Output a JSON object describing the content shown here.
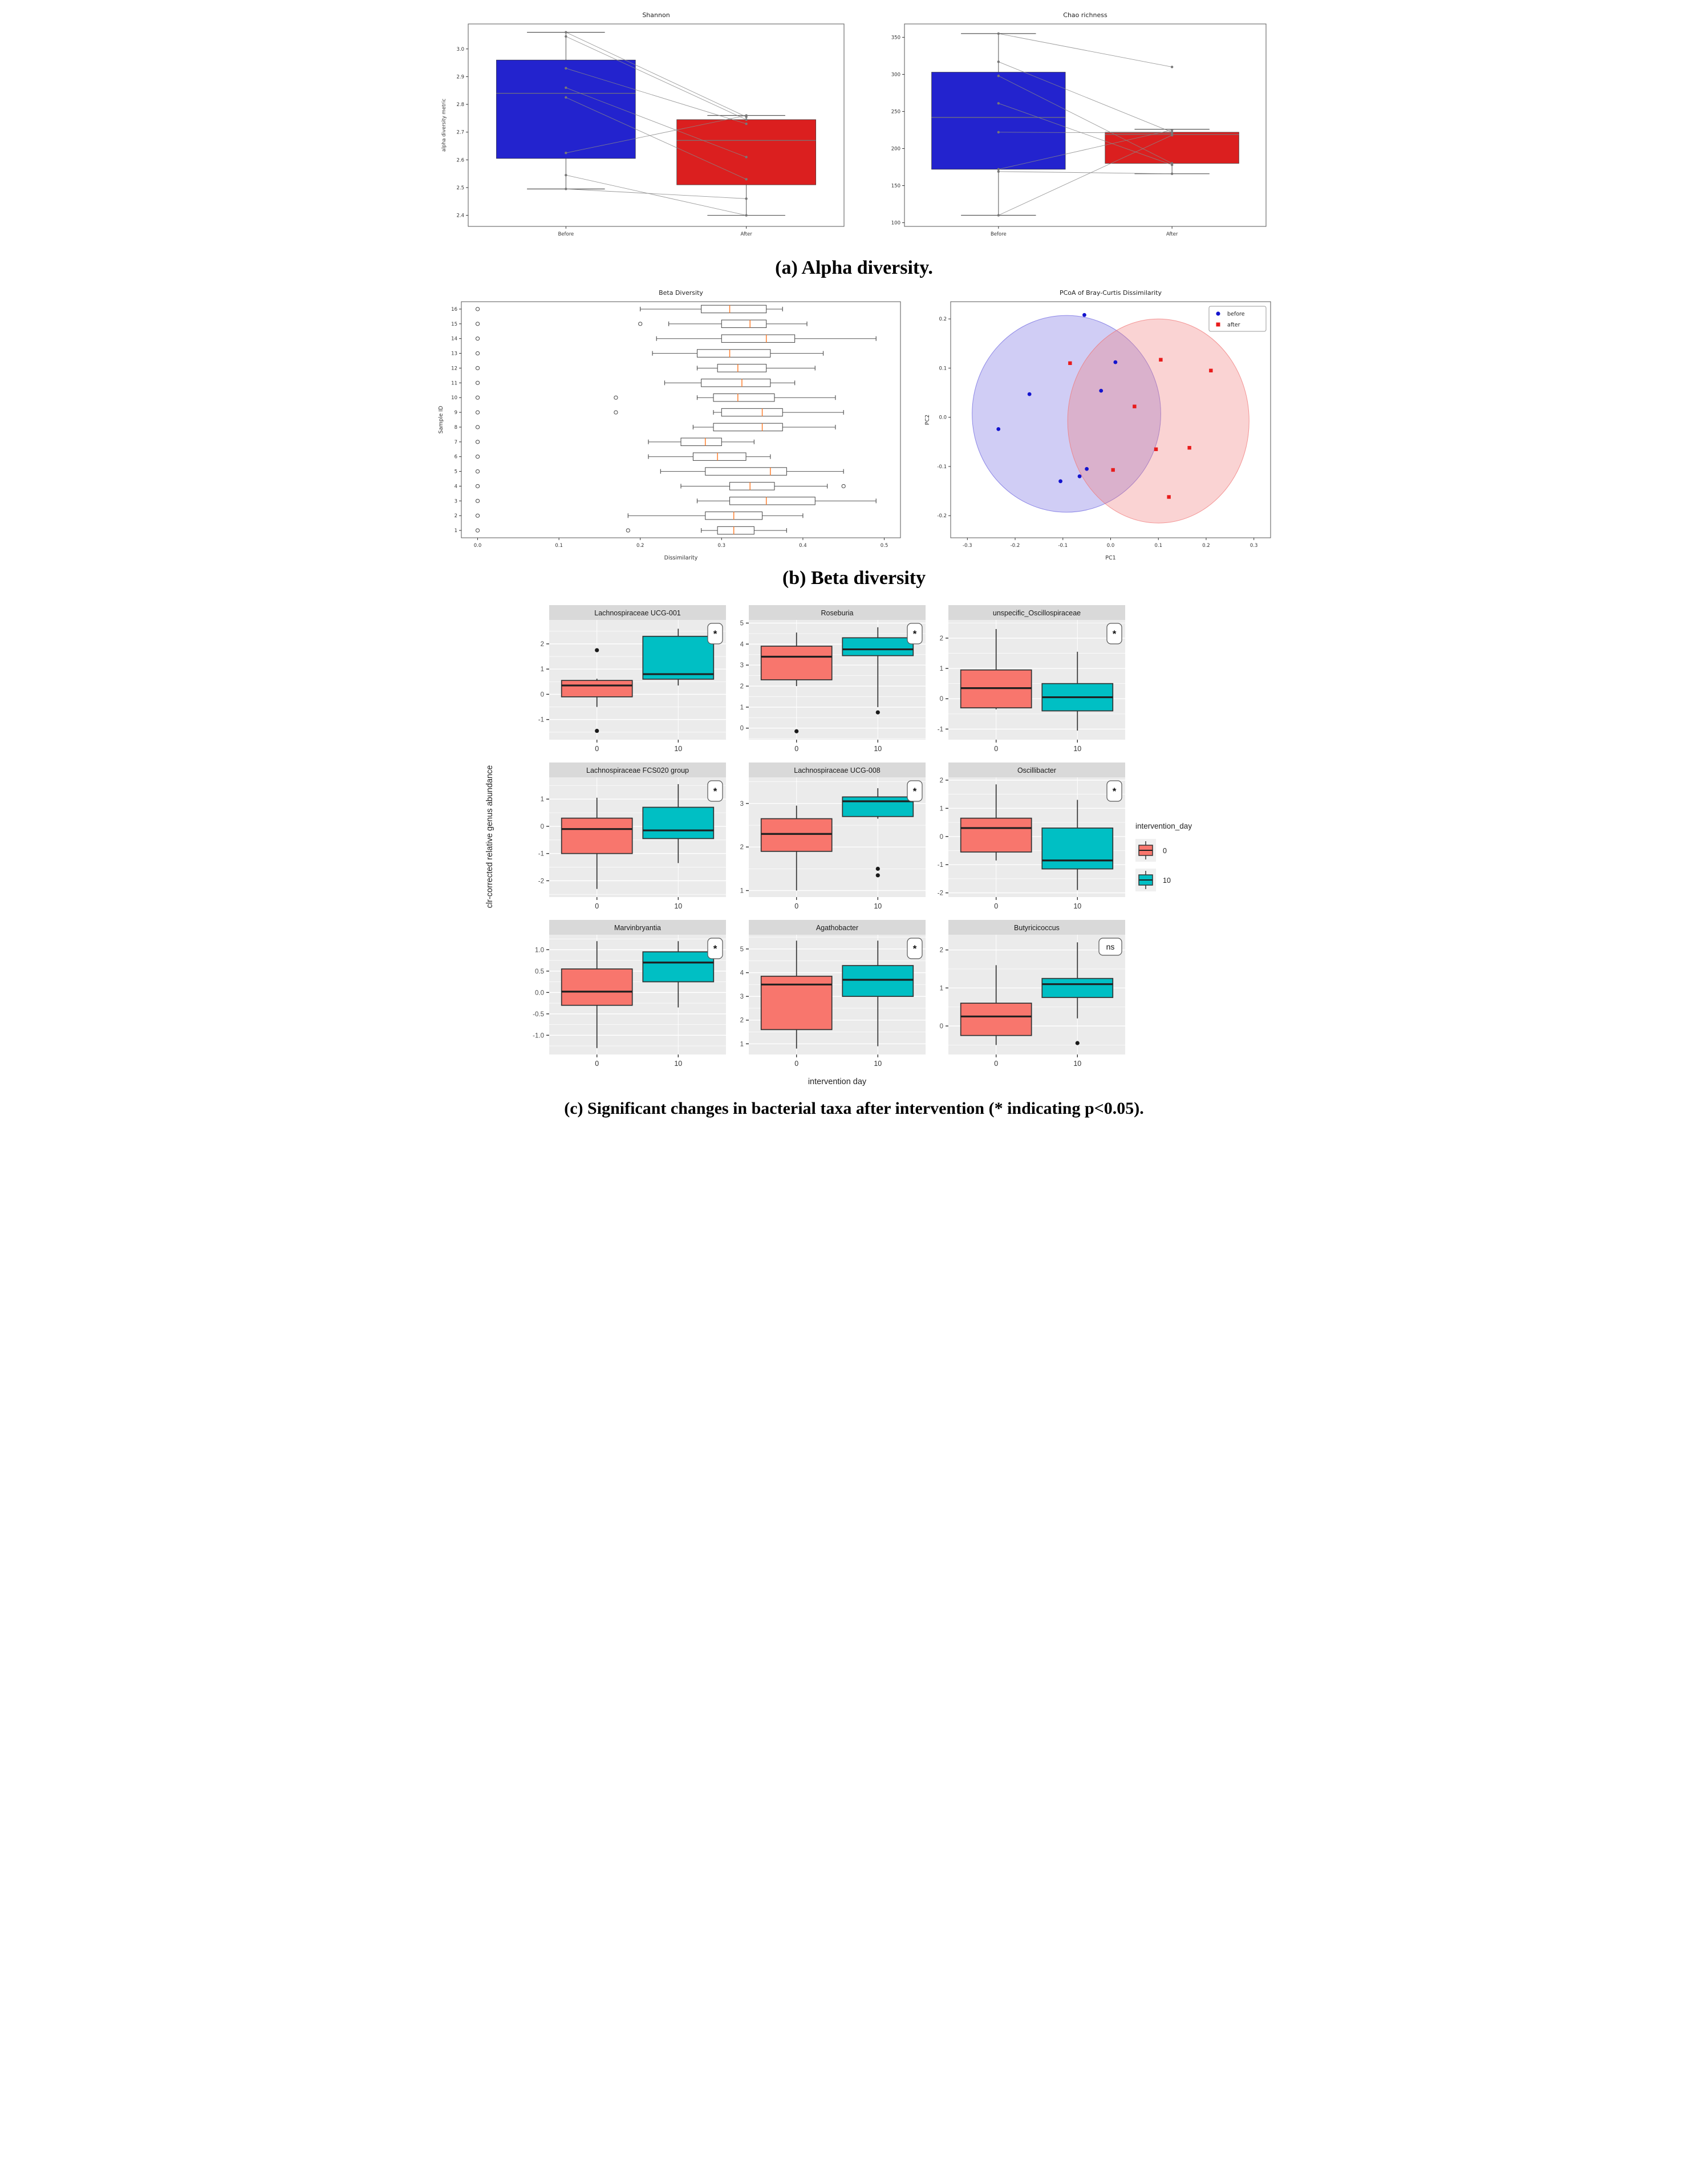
{
  "captions": {
    "a": "(a) Alpha diversity.",
    "b": "(b) Beta diversity",
    "c": "(c) Significant changes in bacterial taxa after intervention (* indicating p<0.05)."
  },
  "colors": {
    "before_blue": "#2323CE",
    "after_red": "#DB1F1F",
    "pair_line_gray": "#888888",
    "beta_median_orange": "#FF7F2E",
    "ggplot_day0": "#F8766D",
    "ggplot_day10": "#00BFC4",
    "ggplot_panel_bg": "#EBEBEB",
    "ggplot_strip_bg": "#D9D9D9"
  },
  "chart_data": [
    {
      "id": "shannon",
      "type": "paired_boxplot",
      "title": "Shannon",
      "ylabel": "alpha diversity metric",
      "categories": [
        "Before",
        "After"
      ],
      "ylim": [
        2.36,
        3.09
      ],
      "yticks": {
        "vals": [
          2.4,
          2.5,
          2.6,
          2.7,
          2.8,
          2.9,
          3.0
        ],
        "labels": [
          "2.4",
          "2.5",
          "2.6",
          "2.7",
          "2.8",
          "2.9",
          "3.0"
        ]
      },
      "boxes": [
        {
          "category": "Before",
          "color": "#2323CE",
          "lo": 2.495,
          "q1": 2.605,
          "median": 2.84,
          "q3": 2.96,
          "hi": 3.06
        },
        {
          "category": "After",
          "color": "#DB1F1F",
          "lo": 2.4,
          "q1": 2.51,
          "median": 2.67,
          "q3": 2.745,
          "hi": 2.76
        }
      ],
      "pairs": [
        [
          3.06,
          2.755
        ],
        [
          3.045,
          2.745
        ],
        [
          2.93,
          2.73
        ],
        [
          2.86,
          2.61
        ],
        [
          2.825,
          2.53
        ],
        [
          2.625,
          2.76
        ],
        [
          2.545,
          2.4
        ],
        [
          2.495,
          2.46
        ]
      ]
    },
    {
      "id": "chao",
      "type": "paired_boxplot",
      "title": "Chao richness",
      "ylabel": "",
      "categories": [
        "Before",
        "After"
      ],
      "ylim": [
        95,
        368
      ],
      "yticks": {
        "vals": [
          100,
          150,
          200,
          250,
          300,
          350
        ],
        "labels": [
          "100",
          "150",
          "200",
          "250",
          "300",
          "350"
        ]
      },
      "boxes": [
        {
          "category": "Before",
          "color": "#2323CE",
          "lo": 110,
          "q1": 172,
          "median": 242,
          "q3": 303,
          "hi": 355
        },
        {
          "category": "After",
          "color": "#DB1F1F",
          "lo": 166,
          "q1": 180,
          "median": 219,
          "q3": 222,
          "hi": 226
        }
      ],
      "pairs": [
        [
          355,
          310
        ],
        [
          317,
          222
        ],
        [
          298,
          180
        ],
        [
          261,
          178
        ],
        [
          222,
          221
        ],
        [
          172,
          225
        ],
        [
          169,
          166
        ],
        [
          110,
          218
        ]
      ]
    },
    {
      "id": "beta",
      "type": "hboxplot",
      "title": "Beta Diversity",
      "xlabel": "Dissimilarity",
      "ylabel": "Sample ID",
      "xlim": [
        -0.02,
        0.52
      ],
      "xticks": {
        "vals": [
          0.0,
          0.1,
          0.2,
          0.3,
          0.4,
          0.5
        ],
        "labels": [
          "0.0",
          "0.1",
          "0.2",
          "0.3",
          "0.4",
          "0.5"
        ]
      },
      "median_color": "#FF7F2E",
      "rows": [
        {
          "id": 1,
          "outliers": [
            0.0,
            0.185
          ],
          "lo": 0.275,
          "q1": 0.295,
          "median": 0.315,
          "q3": 0.34,
          "hi": 0.38
        },
        {
          "id": 2,
          "outliers": [
            0.0
          ],
          "lo": 0.185,
          "q1": 0.28,
          "median": 0.315,
          "q3": 0.35,
          "hi": 0.4
        },
        {
          "id": 3,
          "outliers": [
            0.0
          ],
          "lo": 0.27,
          "q1": 0.31,
          "median": 0.355,
          "q3": 0.415,
          "hi": 0.49
        },
        {
          "id": 4,
          "outliers": [
            0.0,
            0.45
          ],
          "lo": 0.25,
          "q1": 0.31,
          "median": 0.335,
          "q3": 0.365,
          "hi": 0.43
        },
        {
          "id": 5,
          "outliers": [
            0.0
          ],
          "lo": 0.225,
          "q1": 0.28,
          "median": 0.36,
          "q3": 0.38,
          "hi": 0.45
        },
        {
          "id": 6,
          "outliers": [
            0.0
          ],
          "lo": 0.21,
          "q1": 0.265,
          "median": 0.295,
          "q3": 0.33,
          "hi": 0.36
        },
        {
          "id": 7,
          "outliers": [
            0.0
          ],
          "lo": 0.21,
          "q1": 0.25,
          "median": 0.28,
          "q3": 0.3,
          "hi": 0.34
        },
        {
          "id": 8,
          "outliers": [
            0.0
          ],
          "lo": 0.265,
          "q1": 0.29,
          "median": 0.35,
          "q3": 0.375,
          "hi": 0.44
        },
        {
          "id": 9,
          "outliers": [
            0.0,
            0.17
          ],
          "lo": 0.29,
          "q1": 0.3,
          "median": 0.35,
          "q3": 0.375,
          "hi": 0.45
        },
        {
          "id": 10,
          "outliers": [
            0.0,
            0.17
          ],
          "lo": 0.27,
          "q1": 0.29,
          "median": 0.32,
          "q3": 0.365,
          "hi": 0.44
        },
        {
          "id": 11,
          "outliers": [
            0.0
          ],
          "lo": 0.23,
          "q1": 0.275,
          "median": 0.325,
          "q3": 0.36,
          "hi": 0.39
        },
        {
          "id": 12,
          "outliers": [
            0.0
          ],
          "lo": 0.27,
          "q1": 0.295,
          "median": 0.32,
          "q3": 0.355,
          "hi": 0.415
        },
        {
          "id": 13,
          "outliers": [
            0.0
          ],
          "lo": 0.215,
          "q1": 0.27,
          "median": 0.31,
          "q3": 0.36,
          "hi": 0.425
        },
        {
          "id": 14,
          "outliers": [
            0.0
          ],
          "lo": 0.22,
          "q1": 0.3,
          "median": 0.355,
          "q3": 0.39,
          "hi": 0.49
        },
        {
          "id": 15,
          "outliers": [
            0.0,
            0.2
          ],
          "lo": 0.235,
          "q1": 0.3,
          "median": 0.335,
          "q3": 0.355,
          "hi": 0.405
        },
        {
          "id": 16,
          "outliers": [
            0.0
          ],
          "lo": 0.2,
          "q1": 0.275,
          "median": 0.31,
          "q3": 0.355,
          "hi": 0.375
        }
      ]
    },
    {
      "id": "pcoa",
      "type": "scatter",
      "title": "PCoA of Bray-Curtis Dissimilarity",
      "xlabel": "PC1",
      "ylabel": "PC2",
      "xlim": [
        -0.335,
        0.335
      ],
      "ylim": [
        -0.245,
        0.235
      ],
      "xticks": {
        "vals": [
          -0.3,
          -0.2,
          -0.1,
          0.0,
          0.1,
          0.2,
          0.3
        ],
        "labels": [
          "-0.3",
          "-0.2",
          "-0.1",
          "0.0",
          "0.1",
          "0.2",
          "0.3"
        ]
      },
      "yticks": {
        "vals": [
          -0.2,
          -0.1,
          0.0,
          0.1,
          0.2
        ],
        "labels": [
          "-0.2",
          "-0.1",
          "0.0",
          "0.1",
          "0.2"
        ]
      },
      "legend": {
        "items": [
          {
            "label": "before",
            "marker": "circle",
            "color": "#1414CE"
          },
          {
            "label": "after",
            "marker": "square",
            "color": "#E81C1C"
          }
        ]
      },
      "ellipses": [
        {
          "group": "before",
          "cx": -0.0925,
          "cy": 0.007,
          "rx": 0.1975,
          "ry": 0.2,
          "color": "#6F68E0"
        },
        {
          "group": "after",
          "cx": 0.1,
          "cy": -0.0075,
          "rx": 0.19,
          "ry": 0.2075,
          "color": "#F07878"
        }
      ],
      "series": [
        {
          "name": "before",
          "marker": "circle",
          "color": "#1414CE",
          "points": [
            [
              -0.055,
              0.208
            ],
            [
              0.01,
              0.112
            ],
            [
              -0.02,
              0.054
            ],
            [
              -0.17,
              0.047
            ],
            [
              -0.235,
              -0.024
            ],
            [
              -0.05,
              -0.105
            ],
            [
              -0.065,
              -0.12
            ],
            [
              -0.105,
              -0.13
            ]
          ]
        },
        {
          "name": "after",
          "marker": "square",
          "color": "#E81C1C",
          "points": [
            [
              -0.085,
              0.11
            ],
            [
              0.105,
              0.117
            ],
            [
              0.21,
              0.095
            ],
            [
              0.05,
              0.022
            ],
            [
              0.095,
              -0.065
            ],
            [
              0.165,
              -0.062
            ],
            [
              0.005,
              -0.107
            ],
            [
              0.122,
              -0.162
            ]
          ]
        }
      ]
    },
    {
      "id": "taxa",
      "type": "boxplot_grid",
      "xlabel": "intervention day",
      "ylabel": "clr-corrected relative genus abundance",
      "categories": [
        "0",
        "10"
      ],
      "legend": {
        "title": "intervention_day",
        "items": [
          {
            "label": "0",
            "color": "#F8766D"
          },
          {
            "label": "10",
            "color": "#00BFC4"
          }
        ]
      },
      "panels": [
        {
          "title": "Lachnospiraceae UCG-001",
          "sig": "*",
          "ylim": [
            -1.8,
            2.95
          ],
          "yticks": {
            "vals": [
              -1,
              0,
              1,
              2
            ],
            "labels": [
              "-1",
              "0",
              "1",
              "2"
            ]
          },
          "day0": {
            "lo": -0.5,
            "q1": -0.1,
            "median": 0.35,
            "q3": 0.55,
            "hi": 0.62,
            "outliers": [
              1.75,
              -1.45
            ]
          },
          "day10": {
            "lo": 0.35,
            "q1": 0.6,
            "median": 0.8,
            "q3": 2.3,
            "hi": 2.6,
            "outliers": []
          }
        },
        {
          "title": "Roseburia",
          "sig": "*",
          "ylim": [
            -0.55,
            5.15
          ],
          "yticks": {
            "vals": [
              0,
              1,
              2,
              3,
              4,
              5
            ],
            "labels": [
              "0",
              "1",
              "2",
              "3",
              "4",
              "5"
            ]
          },
          "day0": {
            "lo": 2.0,
            "q1": 2.3,
            "median": 3.4,
            "q3": 3.9,
            "hi": 4.55,
            "outliers": [
              -0.15
            ]
          },
          "day10": {
            "lo": 1.0,
            "q1": 3.45,
            "median": 3.75,
            "q3": 4.3,
            "hi": 4.8,
            "outliers": [
              0.75
            ]
          }
        },
        {
          "title": "unspecific_Oscillospiraceae",
          "sig": "*",
          "ylim": [
            -1.35,
            2.6
          ],
          "yticks": {
            "vals": [
              -1,
              0,
              1,
              2
            ],
            "labels": [
              "-1",
              "0",
              "1",
              "2"
            ]
          },
          "day0": {
            "lo": -0.35,
            "q1": -0.3,
            "median": 0.35,
            "q3": 0.95,
            "hi": 2.3,
            "outliers": []
          },
          "day10": {
            "lo": -1.05,
            "q1": -0.4,
            "median": 0.05,
            "q3": 0.5,
            "hi": 1.55,
            "outliers": []
          }
        },
        {
          "title": "Lachnospiraceae FCS020 group",
          "sig": "*",
          "ylim": [
            -2.6,
            1.8
          ],
          "yticks": {
            "vals": [
              -2,
              -1,
              0,
              1
            ],
            "labels": [
              "-2",
              "-1",
              "0",
              "1"
            ]
          },
          "day0": {
            "lo": -2.3,
            "q1": -1.0,
            "median": -0.1,
            "q3": 0.3,
            "hi": 1.05,
            "outliers": []
          },
          "day10": {
            "lo": -1.35,
            "q1": -0.45,
            "median": -0.15,
            "q3": 0.7,
            "hi": 1.55,
            "outliers": []
          }
        },
        {
          "title": "Lachnospiraceae UCG-008",
          "sig": "*",
          "ylim": [
            0.85,
            3.6
          ],
          "yticks": {
            "vals": [
              1,
              2,
              3
            ],
            "labels": [
              "1",
              "2",
              "3"
            ]
          },
          "day0": {
            "lo": 1.0,
            "q1": 1.9,
            "median": 2.3,
            "q3": 2.65,
            "hi": 2.95,
            "outliers": []
          },
          "day10": {
            "lo": 2.65,
            "q1": 2.7,
            "median": 3.05,
            "q3": 3.15,
            "hi": 3.35,
            "outliers": [
              1.5,
              1.35
            ]
          }
        },
        {
          "title": "Oscillibacter",
          "sig": "*",
          "ylim": [
            -2.15,
            2.1
          ],
          "yticks": {
            "vals": [
              -2,
              -1,
              0,
              1,
              2
            ],
            "labels": [
              "-2",
              "-1",
              "0",
              "1",
              "2"
            ]
          },
          "day0": {
            "lo": -0.85,
            "q1": -0.55,
            "median": 0.3,
            "q3": 0.65,
            "hi": 1.85,
            "outliers": []
          },
          "day10": {
            "lo": -1.9,
            "q1": -1.15,
            "median": -0.85,
            "q3": 0.3,
            "hi": 1.3,
            "outliers": []
          }
        },
        {
          "title": "Marvinbryantia",
          "sig": "*",
          "ylim": [
            -1.45,
            1.35
          ],
          "yticks": {
            "vals": [
              -1.0,
              -0.5,
              0.0,
              0.5,
              1.0
            ],
            "labels": [
              "-1.0",
              "-0.5",
              "0.0",
              "0.5",
              "1.0"
            ]
          },
          "day0": {
            "lo": -1.3,
            "q1": -0.3,
            "median": 0.02,
            "q3": 0.55,
            "hi": 1.2,
            "outliers": []
          },
          "day10": {
            "lo": -0.35,
            "q1": 0.25,
            "median": 0.7,
            "q3": 0.95,
            "hi": 1.2,
            "outliers": []
          }
        },
        {
          "title": "Agathobacter",
          "sig": "*",
          "ylim": [
            0.55,
            5.6
          ],
          "yticks": {
            "vals": [
              1,
              2,
              3,
              4,
              5
            ],
            "labels": [
              "1",
              "2",
              "3",
              "4",
              "5"
            ]
          },
          "day0": {
            "lo": 0.8,
            "q1": 1.6,
            "median": 3.5,
            "q3": 3.85,
            "hi": 5.35,
            "outliers": []
          },
          "day10": {
            "lo": 0.9,
            "q1": 3.0,
            "median": 3.7,
            "q3": 4.3,
            "hi": 5.35,
            "outliers": []
          }
        },
        {
          "title": "Butyricicoccus",
          "sig": "ns",
          "ylim": [
            -0.75,
            2.4
          ],
          "yticks": {
            "vals": [
              0,
              1,
              2
            ],
            "labels": [
              "0",
              "1",
              "2"
            ]
          },
          "day0": {
            "lo": -0.5,
            "q1": -0.25,
            "median": 0.25,
            "q3": 0.6,
            "hi": 1.6,
            "outliers": []
          },
          "day10": {
            "lo": 0.2,
            "q1": 0.75,
            "median": 1.1,
            "q3": 1.25,
            "hi": 2.2,
            "outliers": [
              -0.45
            ]
          }
        }
      ]
    }
  ]
}
